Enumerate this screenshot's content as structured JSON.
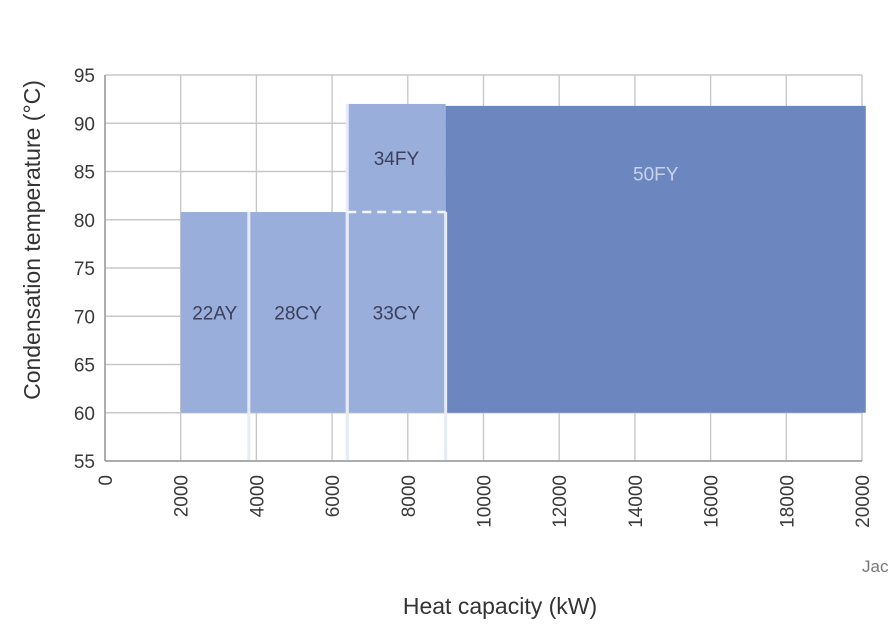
{
  "chart_data": {
    "type": "bar",
    "xlabel": "Heat capacity (kW)",
    "ylabel": "Condensation temperature (°C)",
    "xlim": [
      0,
      20000
    ],
    "ylim": [
      55,
      95
    ],
    "x_ticks": [
      "0",
      "2000",
      "4000",
      "6000",
      "8000",
      "10000",
      "12000",
      "14000",
      "16000",
      "18000",
      "20000"
    ],
    "y_ticks": [
      "55",
      "60",
      "65",
      "70",
      "75",
      "80",
      "85",
      "90",
      "95"
    ],
    "grid": true,
    "regions": [
      {
        "label": "22AY",
        "x_min": 2000,
        "x_max": 3800,
        "y_min": 60,
        "y_max": 80.8
      },
      {
        "label": "28CY",
        "x_min": 3800,
        "x_max": 6400,
        "y_min": 60,
        "y_max": 80.8
      },
      {
        "label": "33CY",
        "x_min": 6400,
        "x_max": 9000,
        "y_min": 60,
        "y_max": 80.8
      },
      {
        "label": "34FY",
        "x_min": 6400,
        "x_max": 9000,
        "y_min": 80.8,
        "y_max": 92
      },
      {
        "label": "50FY",
        "x_min": 9000,
        "x_max": 20100,
        "y_min": 60,
        "y_max": 91.8
      }
    ],
    "colors": {
      "light": "#9aaedb",
      "dark": "#6c87c0",
      "grid": "#c8c8c8"
    }
  },
  "credit_text": "Jac"
}
